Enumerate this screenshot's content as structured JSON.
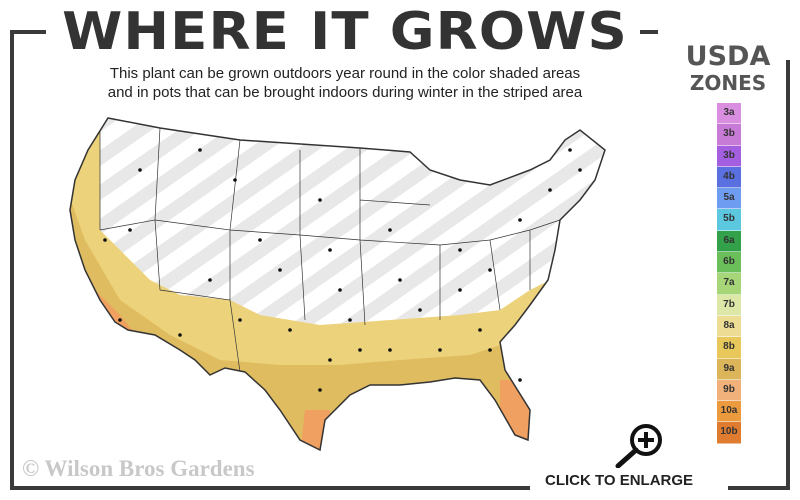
{
  "header": {
    "title": "WHERE IT GROWS",
    "subtitle_line1": "This plant can be grown outdoors year round in the color shaded areas",
    "subtitle_line2": "and in pots that can be brought indoors during winter in the striped area"
  },
  "legend": {
    "title_line1": "USDA",
    "title_line2": "ZONES",
    "zones": [
      {
        "label": "3a",
        "color": "#d98ee0"
      },
      {
        "label": "3b",
        "color": "#c77ad6"
      },
      {
        "label": "3b",
        "color": "#a35fe0"
      },
      {
        "label": "4b",
        "color": "#5a6fe0"
      },
      {
        "label": "5a",
        "color": "#6e9cf0"
      },
      {
        "label": "5b",
        "color": "#5cc8e0"
      },
      {
        "label": "6a",
        "color": "#33a04a"
      },
      {
        "label": "6b",
        "color": "#6abf5a"
      },
      {
        "label": "7a",
        "color": "#a6d677"
      },
      {
        "label": "7b",
        "color": "#dde8a8"
      },
      {
        "label": "8a",
        "color": "#ecdc94"
      },
      {
        "label": "8b",
        "color": "#e8c85a"
      },
      {
        "label": "9a",
        "color": "#dcb45a"
      },
      {
        "label": "9b",
        "color": "#f0b27a"
      },
      {
        "label": "10a",
        "color": "#ec9a3e"
      },
      {
        "label": "10b",
        "color": "#e07c30"
      }
    ]
  },
  "map": {
    "shaded_colors": {
      "zone8": "#ecd27a",
      "zone9": "#ddb85a",
      "zone10": "#f0a060"
    },
    "striped_area_color": "#e8e8e8"
  },
  "footer": {
    "copyright": "© Wilson Bros Gardens",
    "enlarge_label": "CLICK TO ENLARGE",
    "enlarge_icon": "zoom-in-icon"
  }
}
